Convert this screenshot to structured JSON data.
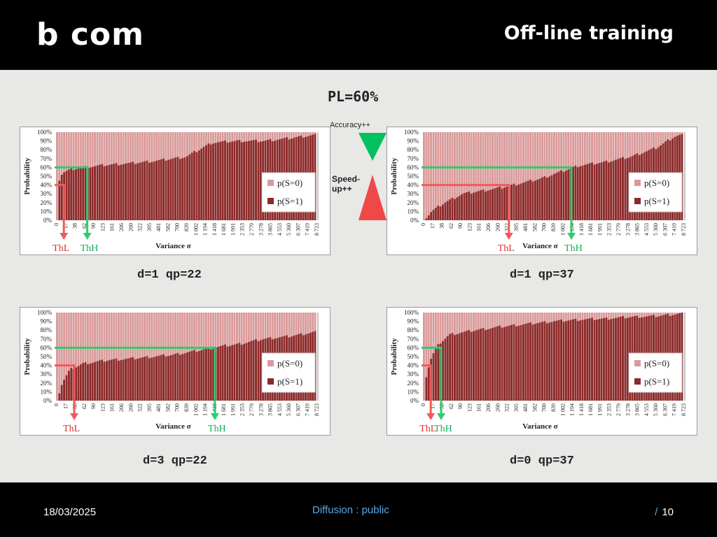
{
  "header": {
    "logo": "b com",
    "title": "Off-line training"
  },
  "pl_label": "PL=60%",
  "center_indicator": {
    "top_label": "Accuracy++",
    "side_label_1": "Speed-",
    "side_label_2": "up++",
    "accent_green": "#00c060",
    "accent_red": "#f04848"
  },
  "chart_data": [
    {
      "type": "bar",
      "caption": "d=1 qp=22",
      "ylabel": "Probability",
      "xlabel": "Variance σ",
      "yticks": [
        "0%",
        "10%",
        "20%",
        "30%",
        "40%",
        "50%",
        "60%",
        "70%",
        "80%",
        "90%",
        "100%"
      ],
      "xticks": [
        "0",
        "17",
        "38",
        "62",
        "90",
        "123",
        "161",
        "206",
        "260",
        "322",
        "395",
        "481",
        "582",
        "700",
        "839",
        "1 002",
        "1 194",
        "1 418",
        "1 681",
        "1 991",
        "2 353",
        "2 779",
        "3 278",
        "3 865",
        "4 553",
        "5 360",
        "6 307",
        "7 419",
        "8 723"
      ],
      "series": [
        {
          "name": "p(S=0)",
          "color": "#d99a9a"
        },
        {
          "name": "p(S=1)",
          "color": "#8c2a2a"
        }
      ],
      "curve_points": [
        [
          0,
          0
        ],
        [
          0.01,
          0.5
        ],
        [
          0.03,
          0.55
        ],
        [
          0.06,
          0.58
        ],
        [
          0.1,
          0.6
        ],
        [
          0.2,
          0.63
        ],
        [
          0.3,
          0.65
        ],
        [
          0.4,
          0.68
        ],
        [
          0.5,
          0.72
        ],
        [
          0.55,
          0.8
        ],
        [
          0.6,
          0.88
        ],
        [
          0.7,
          0.9
        ],
        [
          0.8,
          0.9
        ],
        [
          0.9,
          0.93
        ],
        [
          1,
          0.97
        ]
      ],
      "th_low_label": "ThL",
      "th_high_label": "ThH",
      "th_low_level": 0.4,
      "th_high_level": 0.6,
      "th_low_pos": 0.03,
      "th_high_pos": 0.12
    },
    {
      "type": "bar",
      "caption": "d=1 qp=37",
      "ylabel": "Probability",
      "xlabel": "Variance σ",
      "yticks": [
        "0%",
        "10%",
        "20%",
        "30%",
        "40%",
        "50%",
        "60%",
        "70%",
        "80%",
        "90%",
        "100%"
      ],
      "xticks": [
        "0",
        "17",
        "38",
        "62",
        "90",
        "123",
        "161",
        "206",
        "260",
        "322",
        "395",
        "481",
        "582",
        "700",
        "839",
        "1 002",
        "1 194",
        "1 418",
        "1 681",
        "1 991",
        "2 353",
        "2 779",
        "3 278",
        "3 865",
        "4 553",
        "5 360",
        "6 307",
        "7 419",
        "8 723"
      ],
      "series": [
        {
          "name": "p(S=0)",
          "color": "#d99a9a"
        },
        {
          "name": "p(S=1)",
          "color": "#8c2a2a"
        }
      ],
      "curve_points": [
        [
          0,
          0
        ],
        [
          0.03,
          0.1
        ],
        [
          0.08,
          0.2
        ],
        [
          0.15,
          0.3
        ],
        [
          0.3,
          0.37
        ],
        [
          0.45,
          0.47
        ],
        [
          0.55,
          0.57
        ],
        [
          0.6,
          0.62
        ],
        [
          0.7,
          0.66
        ],
        [
          0.8,
          0.72
        ],
        [
          0.9,
          0.82
        ],
        [
          0.97,
          0.95
        ],
        [
          1,
          0.97
        ]
      ],
      "th_low_label": "ThL",
      "th_high_label": "ThH",
      "th_low_level": 0.4,
      "th_high_level": 0.6,
      "th_low_pos": 0.33,
      "th_high_pos": 0.57
    },
    {
      "type": "bar",
      "caption": "d=3 qp=22",
      "ylabel": "Probability",
      "xlabel": "Variance σ",
      "yticks": [
        "0%",
        "10%",
        "20%",
        "30%",
        "40%",
        "50%",
        "60%",
        "70%",
        "80%",
        "90%",
        "100%"
      ],
      "xticks": [
        "0",
        "17",
        "38",
        "62",
        "90",
        "123",
        "161",
        "206",
        "260",
        "322",
        "395",
        "481",
        "582",
        "700",
        "839",
        "1 002",
        "1 194",
        "1 418",
        "1 681",
        "1 991",
        "2 353",
        "2 779",
        "3 278",
        "3 865",
        "4 553",
        "5 360",
        "6 307",
        "7 419",
        "8 723"
      ],
      "series": [
        {
          "name": "p(S=0)",
          "color": "#d99a9a"
        },
        {
          "name": "p(S=1)",
          "color": "#8c2a2a"
        }
      ],
      "curve_points": [
        [
          0,
          0
        ],
        [
          0.02,
          0.2
        ],
        [
          0.05,
          0.35
        ],
        [
          0.1,
          0.42
        ],
        [
          0.2,
          0.46
        ],
        [
          0.3,
          0.48
        ],
        [
          0.45,
          0.52
        ],
        [
          0.55,
          0.57
        ],
        [
          0.62,
          0.61
        ],
        [
          0.7,
          0.64
        ],
        [
          0.8,
          0.7
        ],
        [
          0.9,
          0.73
        ],
        [
          1,
          0.78
        ]
      ],
      "th_low_label": "ThL",
      "th_high_label": "ThH",
      "th_low_level": 0.4,
      "th_high_level": 0.6,
      "th_low_pos": 0.07,
      "th_high_pos": 0.61
    },
    {
      "type": "bar",
      "caption": "d=0 qp=37",
      "ylabel": "Probability",
      "xlabel": "Variance σ",
      "yticks": [
        "0%",
        "10%",
        "20%",
        "30%",
        "40%",
        "50%",
        "60%",
        "70%",
        "80%",
        "90%",
        "100%"
      ],
      "xticks": [
        "0",
        "17",
        "38",
        "62",
        "90",
        "123",
        "161",
        "206",
        "260",
        "322",
        "395",
        "481",
        "582",
        "700",
        "839",
        "1 002",
        "1 194",
        "1 418",
        "1 681",
        "1 991",
        "2 353",
        "2 779",
        "3 278",
        "3 865",
        "4 553",
        "5 360",
        "6 307",
        "7 419",
        "8 723"
      ],
      "series": [
        {
          "name": "p(S=0)",
          "color": "#d99a9a"
        },
        {
          "name": "p(S=1)",
          "color": "#8c2a2a"
        }
      ],
      "curve_points": [
        [
          0,
          0
        ],
        [
          0.01,
          0.3
        ],
        [
          0.03,
          0.5
        ],
        [
          0.06,
          0.65
        ],
        [
          0.1,
          0.75
        ],
        [
          0.2,
          0.8
        ],
        [
          0.3,
          0.84
        ],
        [
          0.4,
          0.87
        ],
        [
          0.5,
          0.9
        ],
        [
          0.6,
          0.92
        ],
        [
          0.7,
          0.93
        ],
        [
          0.8,
          0.95
        ],
        [
          0.9,
          0.96
        ],
        [
          1,
          0.99
        ]
      ],
      "th_low_label": "ThL",
      "th_high_label": "ThH",
      "th_low_level": 0.4,
      "th_high_level": 0.6,
      "th_low_pos": 0.03,
      "th_high_pos": 0.07
    }
  ],
  "footer": {
    "date": "18/03/2025",
    "classification": "Diffusion : public",
    "slash": "/",
    "page": "10"
  }
}
